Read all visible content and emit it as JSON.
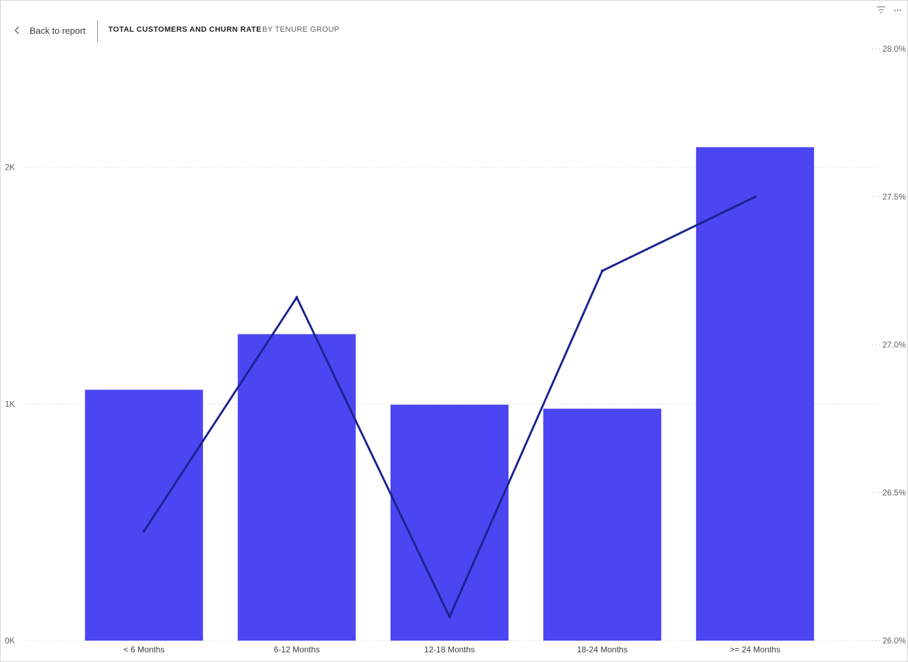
{
  "header": {
    "back_label": "Back to report",
    "title": "TOTAL CUSTOMERS AND CHURN RATE",
    "subtitle": "BY TENURE GROUP"
  },
  "icons": {
    "back": "chevron-left-icon",
    "filter": "filter-icon",
    "more": "more-options-icon"
  },
  "chart_data": {
    "type": "bar",
    "categories": [
      "< 6 Months",
      "6-12 Months",
      "12-18 Months",
      "18-24 Months",
      ">= 24 Months"
    ],
    "series": [
      {
        "kind": "bar",
        "axis": "left",
        "values": [
          1060,
          1295,
          997,
          980,
          2085
        ],
        "color": "#4B45F2"
      },
      {
        "kind": "line",
        "axis": "right",
        "values": [
          26.37,
          27.16,
          26.08,
          27.25,
          27.5
        ],
        "color": "#1A238F"
      }
    ],
    "y_left": {
      "min": 0,
      "max": 2500,
      "ticks": [
        0,
        1000,
        2000
      ],
      "tick_labels": [
        "0K",
        "1K",
        "2K"
      ]
    },
    "y_right": {
      "min": 26.0,
      "max": 28.0,
      "ticks": [
        26.0,
        26.5,
        27.0,
        27.5,
        28.0
      ],
      "tick_labels": [
        "26.0%",
        "26.5%",
        "27.0%",
        "27.5%",
        "28.0%"
      ]
    },
    "grid": true,
    "legend": "none"
  }
}
